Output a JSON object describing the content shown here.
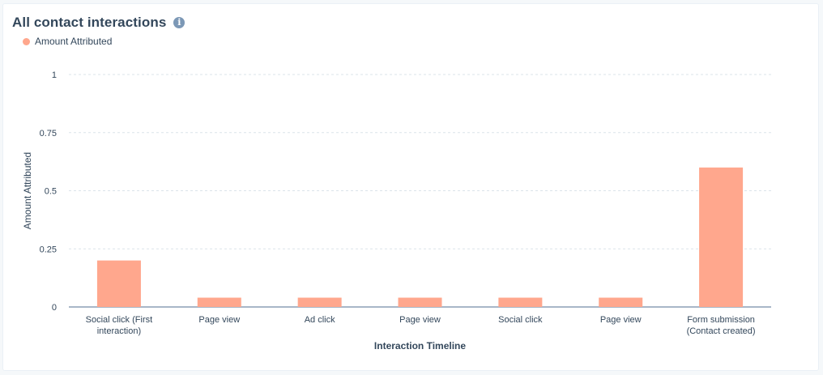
{
  "card": {
    "title": "All contact interactions",
    "info_icon": "info-icon"
  },
  "legend": {
    "label": "Amount Attributed",
    "color": "#ffa78d"
  },
  "chart_data": {
    "type": "bar",
    "categories": [
      [
        "Social click (First",
        "interaction)"
      ],
      [
        "Page view"
      ],
      [
        "Ad click"
      ],
      [
        "Page view"
      ],
      [
        "Social click"
      ],
      [
        "Page view"
      ],
      [
        "Form submission",
        "(Contact created)"
      ]
    ],
    "series": [
      {
        "name": "Amount Attributed",
        "values": [
          0.2,
          0.04,
          0.04,
          0.04,
          0.04,
          0.04,
          0.6
        ],
        "color": "#ffa78d"
      }
    ],
    "xlabel": "Interaction Timeline",
    "ylabel": "Amount Attributed",
    "ylim": [
      0,
      1
    ],
    "yticks": [
      {
        "value": 0,
        "label": "0"
      },
      {
        "value": 0.25,
        "label": "0.25"
      },
      {
        "value": 0.5,
        "label": "0.5"
      },
      {
        "value": 0.75,
        "label": "0.75"
      },
      {
        "value": 1,
        "label": "1"
      }
    ],
    "grid": true,
    "legend_position": "top-left"
  }
}
